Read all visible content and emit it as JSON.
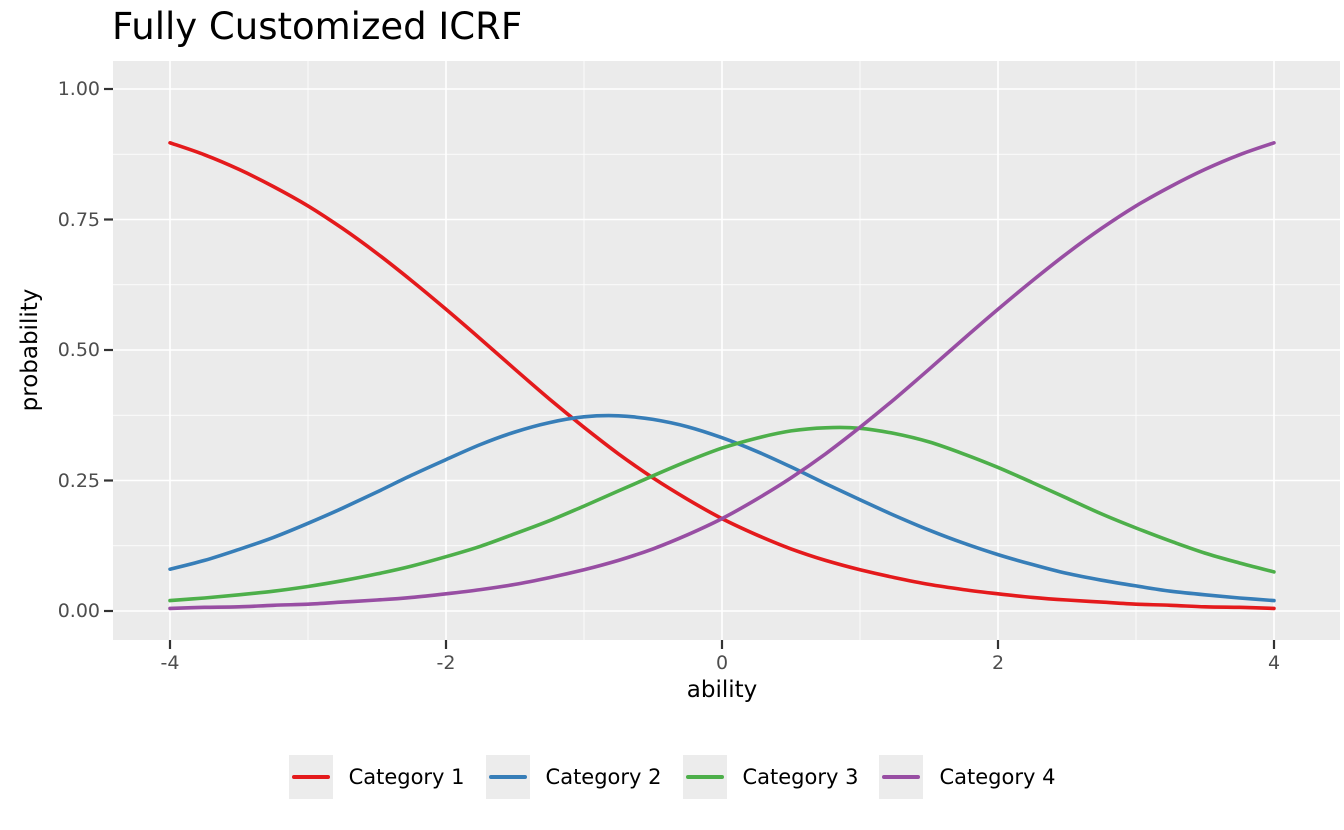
{
  "title": "Fully Customized ICRF",
  "x_axis": {
    "label": "ability",
    "ticks": [
      "-4",
      "-2",
      "0",
      "2",
      "4"
    ],
    "tick_values": [
      -4,
      -2,
      0,
      2,
      4
    ],
    "minor_values": [
      -3,
      -1,
      1,
      3
    ],
    "range": [
      -4,
      4
    ]
  },
  "y_axis": {
    "label": "probability",
    "ticks": [
      "1.00",
      "0.75",
      "0.50",
      "0.25",
      "0.00"
    ],
    "tick_values": [
      1,
      0.75,
      0.5,
      0.25,
      0
    ],
    "minor_values": [
      0.875,
      0.625,
      0.375,
      0.125
    ],
    "range": [
      0,
      1
    ]
  },
  "legend": [
    {
      "label": "Category 1",
      "color": "#E41A1C"
    },
    {
      "label": "Category 2",
      "color": "#377EB8"
    },
    {
      "label": "Category 3",
      "color": "#4DAF4A"
    },
    {
      "label": "Category 4",
      "color": "#984EA3"
    }
  ],
  "style_colors": {
    "panel_background": "#EBEBEB",
    "plot_background": "#FFFFFF",
    "gridline": "#FFFFFF",
    "tick_mark": "#333333",
    "tick_text": "#4D4D4D",
    "title_text": "#000000"
  },
  "chart_data": {
    "type": "line",
    "title": "Fully Customized ICRF",
    "xlabel": "ability",
    "ylabel": "probability",
    "xlim": [
      -4,
      4
    ],
    "ylim": [
      0,
      1
    ],
    "grid": true,
    "legend_position": "bottom",
    "x": [
      -4,
      -3.75,
      -3.5,
      -3.25,
      -3,
      -2.75,
      -2.5,
      -2.25,
      -2,
      -1.75,
      -1.5,
      -1.25,
      -1,
      -0.75,
      -0.5,
      -0.25,
      0,
      0.25,
      0.5,
      0.75,
      1,
      1.25,
      1.5,
      1.75,
      2,
      2.25,
      2.5,
      2.75,
      3,
      3.25,
      3.5,
      3.75,
      4
    ],
    "series": [
      {
        "name": "Category 1",
        "color": "#E41A1C",
        "values": [
          0.897,
          0.874,
          0.846,
          0.813,
          0.776,
          0.733,
          0.685,
          0.633,
          0.578,
          0.521,
          0.463,
          0.406,
          0.352,
          0.301,
          0.255,
          0.214,
          0.177,
          0.146,
          0.119,
          0.097,
          0.079,
          0.064,
          0.051,
          0.041,
          0.033,
          0.026,
          0.021,
          0.017,
          0.013,
          0.011,
          0.008,
          0.007,
          0.005
        ]
      },
      {
        "name": "Category 2",
        "color": "#377EB8",
        "values": [
          0.08,
          0.097,
          0.118,
          0.141,
          0.168,
          0.197,
          0.228,
          0.26,
          0.29,
          0.319,
          0.343,
          0.361,
          0.372,
          0.374,
          0.367,
          0.353,
          0.332,
          0.306,
          0.276,
          0.244,
          0.213,
          0.183,
          0.155,
          0.13,
          0.108,
          0.089,
          0.072,
          0.059,
          0.048,
          0.038,
          0.031,
          0.025,
          0.02
        ]
      },
      {
        "name": "Category 3",
        "color": "#4DAF4A",
        "values": [
          0.02,
          0.025,
          0.031,
          0.038,
          0.047,
          0.058,
          0.071,
          0.086,
          0.104,
          0.124,
          0.148,
          0.173,
          0.201,
          0.23,
          0.259,
          0.287,
          0.312,
          0.331,
          0.345,
          0.351,
          0.35,
          0.34,
          0.324,
          0.301,
          0.275,
          0.246,
          0.216,
          0.186,
          0.159,
          0.134,
          0.111,
          0.092,
          0.075
        ]
      },
      {
        "name": "Category 4",
        "color": "#984EA3",
        "values": [
          0.005,
          0.007,
          0.008,
          0.011,
          0.013,
          0.017,
          0.021,
          0.026,
          0.033,
          0.041,
          0.051,
          0.064,
          0.079,
          0.097,
          0.119,
          0.146,
          0.177,
          0.214,
          0.255,
          0.301,
          0.352,
          0.406,
          0.463,
          0.521,
          0.578,
          0.633,
          0.685,
          0.733,
          0.776,
          0.813,
          0.846,
          0.874,
          0.897
        ]
      }
    ]
  }
}
